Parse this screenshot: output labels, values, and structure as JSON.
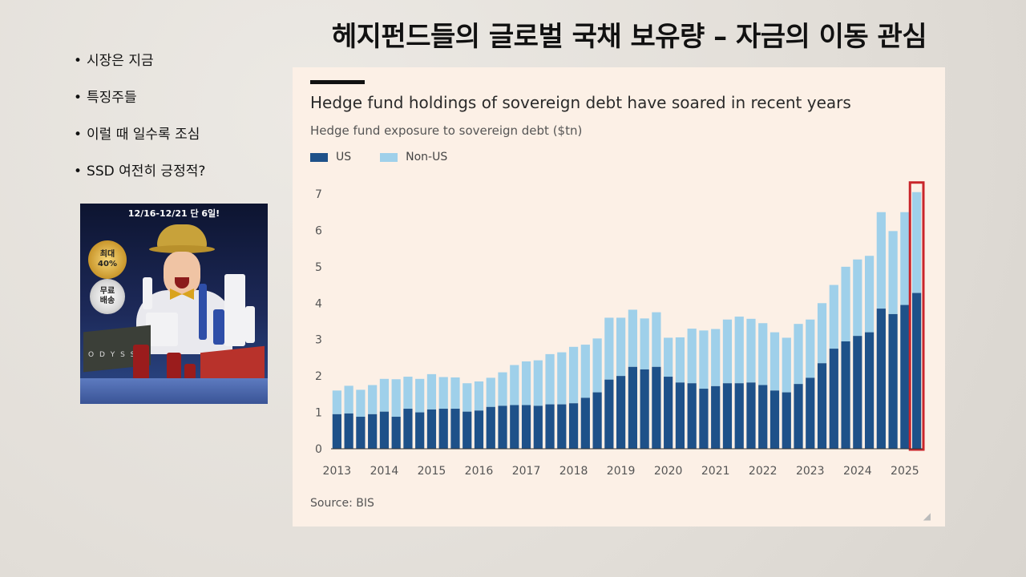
{
  "slide": {
    "title": "헤지펀드들의 글로벌 국채 보유량 – 자금의 이동 관심",
    "bullets": [
      "시장은 지금",
      "특징주들",
      "이럴 때 일수록 조심",
      "SSD 여전히 긍정적?"
    ]
  },
  "ad": {
    "header": "12/16-12/21 단 6일!",
    "badge_gold_line1": "최대",
    "badge_gold_line2": "40%",
    "badge_silver_line1": "무료",
    "badge_silver_line2": "배송",
    "box_text": "O D Y S S E"
  },
  "chart_panel": {
    "source": "Source: BIS",
    "corner_mark": "◢"
  },
  "colors": {
    "us": "#1e5189",
    "non_us": "#9fd0ea",
    "highlight": "#c9252b"
  },
  "chart_data": {
    "type": "bar",
    "stacked": true,
    "title": "Hedge fund holdings of sovereign debt have soared in recent years",
    "subtitle": "Hedge fund exposure to sovereign debt ($tn)",
    "x_tick_labels": [
      "2013",
      "2014",
      "2015",
      "2016",
      "2017",
      "2018",
      "2019",
      "2020",
      "2021",
      "2022",
      "2023",
      "2024",
      "2025"
    ],
    "quarters_per_year": 4,
    "ylim": [
      0,
      7
    ],
    "y_ticks": [
      0,
      1,
      2,
      3,
      4,
      5,
      6,
      7
    ],
    "series": [
      {
        "name": "US",
        "color": "#1e5189",
        "values": [
          0.95,
          0.97,
          0.88,
          0.95,
          1.02,
          0.88,
          1.1,
          1.0,
          1.08,
          1.1,
          1.1,
          1.02,
          1.05,
          1.15,
          1.18,
          1.2,
          1.2,
          1.18,
          1.22,
          1.22,
          1.25,
          1.4,
          1.55,
          1.9,
          2.0,
          2.25,
          2.18,
          2.25,
          1.98,
          1.82,
          1.8,
          1.65,
          1.72,
          1.8,
          1.8,
          1.82,
          1.75,
          1.6,
          1.55,
          1.78,
          1.95,
          2.35,
          2.75,
          2.95,
          3.1,
          3.2,
          3.85,
          3.7,
          3.95,
          4.28
        ]
      },
      {
        "name": "Non-US",
        "color": "#9fd0ea",
        "values": [
          0.65,
          0.76,
          0.74,
          0.8,
          0.9,
          1.03,
          0.88,
          0.92,
          0.97,
          0.87,
          0.86,
          0.78,
          0.8,
          0.8,
          0.92,
          1.1,
          1.2,
          1.25,
          1.38,
          1.43,
          1.55,
          1.46,
          1.48,
          1.7,
          1.6,
          1.57,
          1.4,
          1.5,
          1.07,
          1.24,
          1.5,
          1.6,
          1.57,
          1.75,
          1.83,
          1.75,
          1.7,
          1.6,
          1.5,
          1.65,
          1.6,
          1.65,
          1.75,
          2.05,
          2.1,
          2.1,
          2.65,
          2.28,
          2.55,
          2.77
        ]
      }
    ],
    "highlight_last_bar": true,
    "grid": "none",
    "legend_position": "top-left"
  }
}
